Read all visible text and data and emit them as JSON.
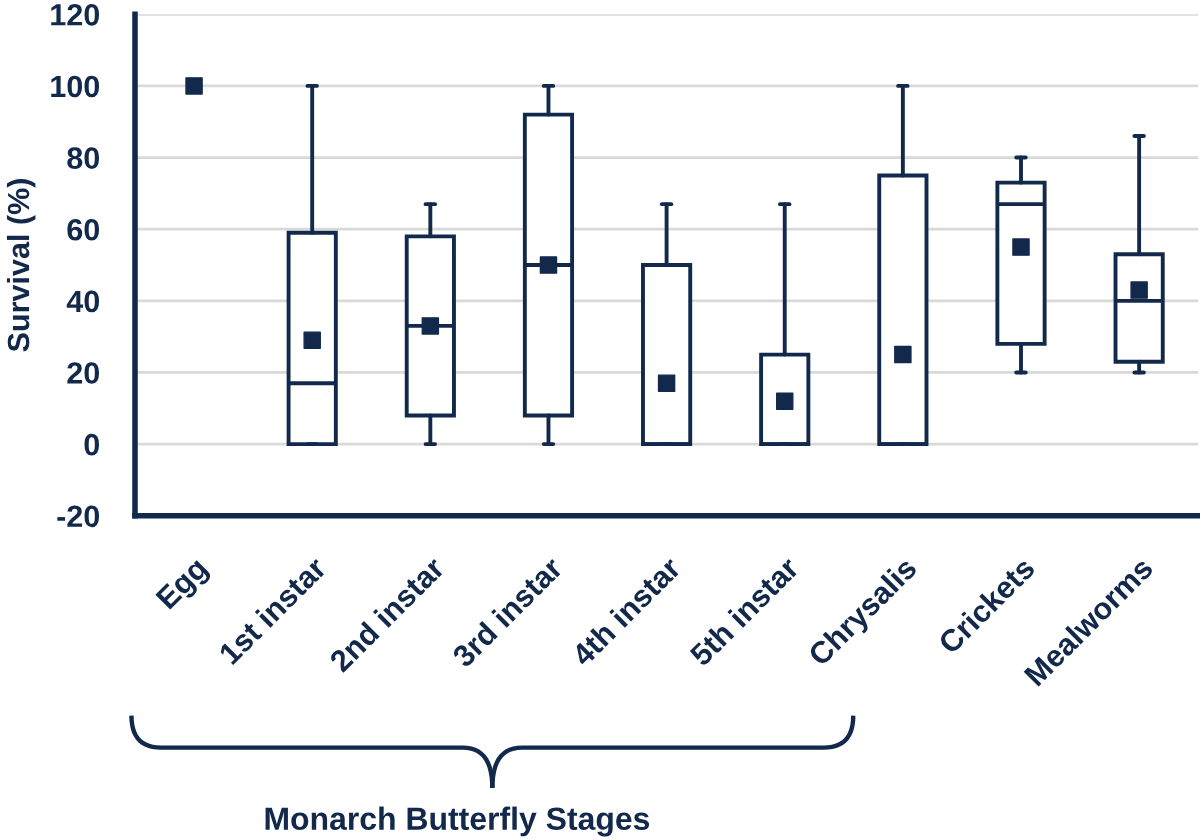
{
  "chart_data": {
    "type": "box",
    "ylabel": "Survival (%)",
    "color": "#13294b",
    "categories": [
      "Egg",
      "1st instar",
      "2nd instar",
      "3rd instar",
      "4th instar",
      "5th instar",
      "Chrysalis",
      "Crickets",
      "Mealworms"
    ],
    "boxes": [
      null,
      {
        "low": 0,
        "q1": 0,
        "median": 17,
        "q3": 59,
        "high": 100,
        "mean": 29
      },
      {
        "low": 0,
        "q1": 8,
        "median": 33,
        "q3": 58,
        "high": 67,
        "mean": 33
      },
      {
        "low": 0,
        "q1": 8,
        "median": 50,
        "q3": 92,
        "high": 100,
        "mean": 50
      },
      {
        "low": 0,
        "q1": 0,
        "median": 0,
        "q3": 50,
        "high": 67,
        "mean": 17
      },
      {
        "low": 0,
        "q1": 0,
        "median": 0,
        "q3": 25,
        "high": 67,
        "mean": 12
      },
      {
        "low": 0,
        "q1": 0,
        "median": 0,
        "q3": 75,
        "high": 100,
        "mean": 25
      },
      {
        "low": 20,
        "q1": 28,
        "median": 67,
        "q3": 73,
        "high": 80,
        "mean": 55
      },
      {
        "low": 20,
        "q1": 23,
        "median": 40,
        "q3": 53,
        "high": 86,
        "mean": 43
      }
    ],
    "series": [
      {
        "type": "scatter",
        "color": "#13294b",
        "x": [
          "Egg"
        ],
        "values": [
          100
        ]
      }
    ],
    "ylim": [
      -20,
      120
    ],
    "yticks": [
      -20,
      0,
      20,
      40,
      60,
      80,
      100,
      120
    ],
    "grid": "y",
    "marker": "square",
    "annotations": [
      "Monarch Butterfly Stages"
    ]
  }
}
